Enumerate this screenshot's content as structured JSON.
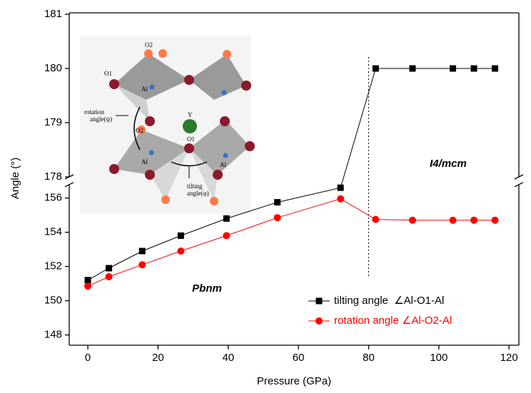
{
  "chart_data": {
    "type": "line",
    "xlabel": "Pressure (GPa)",
    "ylabel": "Angle (°)",
    "xlim": [
      -5.3,
      122.8
    ],
    "xticks": [
      0,
      20,
      40,
      60,
      80,
      100,
      120
    ],
    "ylim": [
      147.4,
      156.7
    ],
    "yticks": [
      148,
      150,
      152,
      154,
      156
    ],
    "axis_break": {
      "ylim": [
        178,
        181
      ],
      "yticks": [
        178,
        179,
        180,
        181
      ]
    },
    "phase_boundary": 80,
    "annotations": [
      "Pbnm",
      "I4/mcm"
    ],
    "legend": "lower right",
    "x": [
      0,
      6,
      15.5,
      26.5,
      39.5,
      54,
      72,
      82,
      92.5,
      104,
      110,
      116
    ],
    "series": [
      {
        "name": "tilting angle  ∠Al-O1-Al",
        "color": "#000000",
        "marker": "square",
        "values": [
          151.2,
          151.9,
          152.9,
          153.8,
          154.8,
          155.75,
          156.6,
          180,
          180,
          180,
          180,
          180
        ]
      },
      {
        "name": "rotation angle ∠Al-O2-Al",
        "color": "#ff0000",
        "marker": "circle",
        "values": [
          150.85,
          151.4,
          152.1,
          152.9,
          153.8,
          154.85,
          155.95,
          154.75,
          154.7,
          154.7,
          154.7,
          154.7
        ]
      }
    ],
    "inset_labels": [
      "O2",
      "O1",
      "Al",
      "Y",
      "O2",
      "Al",
      "O1",
      "Al",
      "rotation",
      "angle(ψ)",
      "tilting",
      "angle(φ)"
    ]
  }
}
